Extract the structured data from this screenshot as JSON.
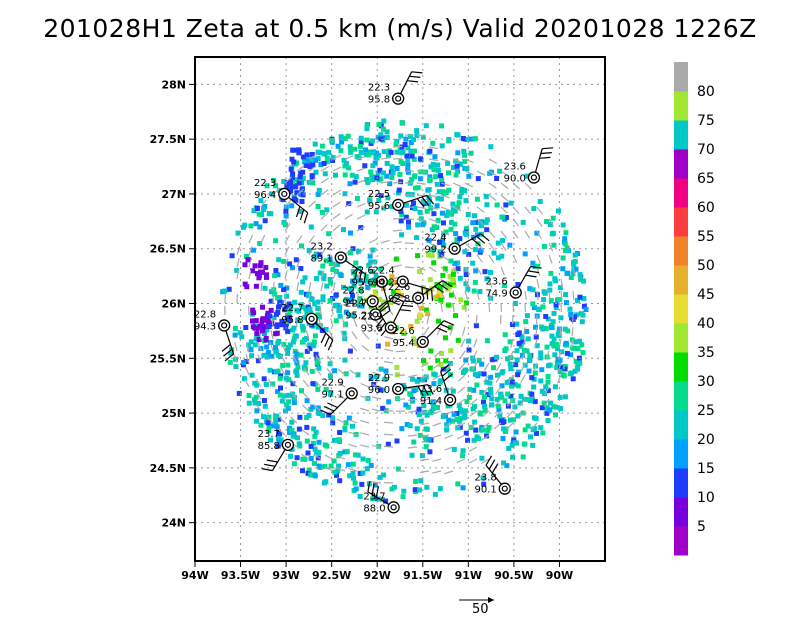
{
  "title": "201028H1  Zeta at 0.5 km (m/s) Valid 20201028  1226Z",
  "map": {
    "lon_range": [
      -94.0,
      -89.5
    ],
    "lat_range": [
      23.65,
      28.25
    ],
    "lat_ticks": [
      {
        "value": 28.0,
        "label": "28N"
      },
      {
        "value": 27.5,
        "label": "27.5N"
      },
      {
        "value": 27.0,
        "label": "27N"
      },
      {
        "value": 26.5,
        "label": "26.5N"
      },
      {
        "value": 26.0,
        "label": "26N"
      },
      {
        "value": 25.5,
        "label": "25.5N"
      },
      {
        "value": 25.0,
        "label": "25N"
      },
      {
        "value": 24.5,
        "label": "24.5N"
      },
      {
        "value": 24.0,
        "label": "24N"
      }
    ],
    "lon_ticks": [
      {
        "value": -94.0,
        "label": "94W"
      },
      {
        "value": -93.5,
        "label": "93.5W"
      },
      {
        "value": -93.0,
        "label": "93W"
      },
      {
        "value": -92.5,
        "label": "92.5W"
      },
      {
        "value": -92.0,
        "label": "92W"
      },
      {
        "value": -91.5,
        "label": "91.5W"
      },
      {
        "value": -91.0,
        "label": "91W"
      },
      {
        "value": -90.5,
        "label": "90.5W"
      },
      {
        "value": -90.0,
        "label": "90W"
      }
    ],
    "grid": "dotted",
    "storm_center": {
      "lon": -91.73,
      "lat": 25.95
    },
    "field_extent_deg": 1.85,
    "eye_radius_deg": 0.42
  },
  "colorbar": {
    "colors": [
      "#a000c8",
      "#7800dc",
      "#1e3cff",
      "#00a0ff",
      "#00c8c8",
      "#00dc8c",
      "#00dc00",
      "#a0e632",
      "#e6dc32",
      "#e6af2d",
      "#f08228",
      "#fa3c3c",
      "#f00082",
      "#a000c8",
      "#00c8c8",
      "#a0e632",
      "#aaaaaa"
    ],
    "labels": [
      "5",
      "10",
      "15",
      "20",
      "25",
      "30",
      "35",
      "40",
      "45",
      "50",
      "55",
      "60",
      "65",
      "70",
      "75",
      "80"
    ]
  },
  "reference_vector": {
    "label": "50"
  },
  "stations": [
    {
      "lon": -91.77,
      "lat": 27.87,
      "temp": "22.3",
      "pres": "95.8",
      "u": 6,
      "v": -12
    },
    {
      "lon": -90.28,
      "lat": 27.15,
      "temp": "23.6",
      "pres": "90.0",
      "u": 4,
      "v": -14
    },
    {
      "lon": -93.02,
      "lat": 27.0,
      "temp": "22.3",
      "pres": "96.4",
      "u": 10,
      "v": 8
    },
    {
      "lon": -91.77,
      "lat": 26.9,
      "temp": "22.5",
      "pres": "95.6",
      "u": 12,
      "v": -4
    },
    {
      "lon": -91.15,
      "lat": 26.5,
      "temp": "22.4",
      "pres": "99.2",
      "u": 14,
      "v": -8
    },
    {
      "lon": -92.4,
      "lat": 26.42,
      "temp": "23.2",
      "pres": "89.1",
      "u": 12,
      "v": 8
    },
    {
      "lon": -90.48,
      "lat": 26.1,
      "temp": "23.6",
      "pres": "74.9",
      "u": 8,
      "v": -14
    },
    {
      "lon": -93.68,
      "lat": 25.8,
      "temp": "22.8",
      "pres": "94.3",
      "u": 4,
      "v": 12
    },
    {
      "lon": -92.72,
      "lat": 25.86,
      "temp": "22.7",
      "pres": "95.8",
      "u": 8,
      "v": 8
    },
    {
      "lon": -91.95,
      "lat": 26.2,
      "temp": "22.6",
      "pres": "95.6",
      "u": 4,
      "v": 14
    },
    {
      "lon": -92.05,
      "lat": 26.02,
      "temp": "22.8",
      "pres": "94.4",
      "u": 6,
      "v": 10
    },
    {
      "lon": -92.02,
      "lat": 25.9,
      "temp": "22.7",
      "pres": "95.2",
      "u": 6,
      "v": -6
    },
    {
      "lon": -91.72,
      "lat": 26.2,
      "temp": "22.4",
      "pres": "94.2",
      "u": 14,
      "v": 4
    },
    {
      "lon": -91.55,
      "lat": 26.05,
      "temp": "22.6",
      "pres": "92.8",
      "u": 14,
      "v": -10
    },
    {
      "lon": -91.85,
      "lat": 25.78,
      "temp": "22.9",
      "pres": "93.6",
      "u": 6,
      "v": -12
    },
    {
      "lon": -91.5,
      "lat": 25.65,
      "temp": "22.6",
      "pres": "95.4",
      "u": 10,
      "v": -10
    },
    {
      "lon": -92.28,
      "lat": 25.18,
      "temp": "22.9",
      "pres": "97.1",
      "u": -8,
      "v": 8
    },
    {
      "lon": -91.77,
      "lat": 25.22,
      "temp": "22.9",
      "pres": "96.0",
      "u": 14,
      "v": -2
    },
    {
      "lon": -91.2,
      "lat": 25.12,
      "temp": "23.6",
      "pres": "91.4",
      "u": -4,
      "v": -12
    },
    {
      "lon": -92.98,
      "lat": 24.71,
      "temp": "23.7",
      "pres": "85.8",
      "u": -6,
      "v": 10
    },
    {
      "lon": -91.82,
      "lat": 24.14,
      "temp": "23.7",
      "pres": "88.0",
      "u": -10,
      "v": -6
    },
    {
      "lon": -90.6,
      "lat": 24.31,
      "temp": "23.8",
      "pres": "90.1",
      "u": -8,
      "v": -10
    }
  ]
}
